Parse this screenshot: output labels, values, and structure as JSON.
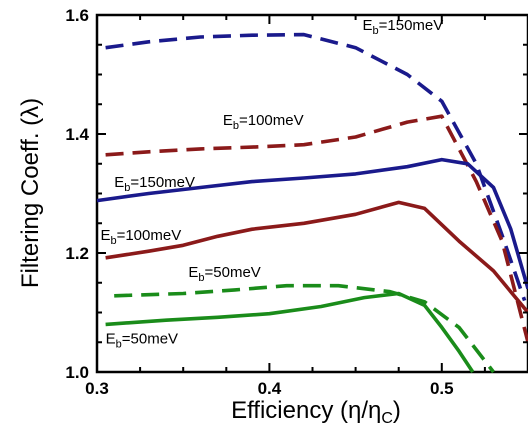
{
  "chart_data": {
    "type": "line",
    "xlabel": "Efficiency (η/η",
    "xlabel_sub": "C",
    "xlabel_end": ")",
    "ylabel": "Filtering Coeff. (λ)",
    "xlim": [
      0.3,
      0.55
    ],
    "ylim": [
      1.0,
      1.6
    ],
    "x_ticks": [
      0.3,
      0.4,
      0.5
    ],
    "y_ticks": [
      1.0,
      1.2,
      1.4,
      1.6
    ],
    "x_tick_labels": [
      "0.3",
      "0.4",
      "0.5"
    ],
    "y_tick_labels": [
      "1.0",
      "1.2",
      "1.4",
      "1.6"
    ],
    "series": [
      {
        "color": "#1a1a8c",
        "dash": true,
        "x": [
          0.305,
          0.33,
          0.36,
          0.39,
          0.42,
          0.45,
          0.48,
          0.5,
          0.52,
          0.535,
          0.548
        ],
        "y": [
          1.545,
          1.555,
          1.563,
          1.566,
          1.567,
          1.545,
          1.5,
          1.455,
          1.35,
          1.23,
          1.12
        ]
      },
      {
        "color": "#8b1a1a",
        "dash": true,
        "x": [
          0.305,
          0.33,
          0.36,
          0.39,
          0.42,
          0.45,
          0.48,
          0.5,
          0.52,
          0.535,
          0.55
        ],
        "y": [
          1.365,
          1.37,
          1.375,
          1.378,
          1.382,
          1.395,
          1.42,
          1.43,
          1.32,
          1.22,
          1.05
        ]
      },
      {
        "color": "#1a1a8c",
        "dash": false,
        "x": [
          0.3,
          0.33,
          0.36,
          0.39,
          0.42,
          0.45,
          0.48,
          0.5,
          0.515,
          0.53,
          0.54,
          0.55
        ],
        "y": [
          1.288,
          1.3,
          1.31,
          1.32,
          1.326,
          1.333,
          1.345,
          1.357,
          1.35,
          1.31,
          1.24,
          1.14
        ]
      },
      {
        "color": "#8b1a1a",
        "dash": false,
        "x": [
          0.305,
          0.33,
          0.35,
          0.37,
          0.39,
          0.42,
          0.45,
          0.475,
          0.49,
          0.51,
          0.53,
          0.55
        ],
        "y": [
          1.192,
          1.203,
          1.213,
          1.228,
          1.24,
          1.25,
          1.265,
          1.285,
          1.275,
          1.22,
          1.17,
          1.1
        ]
      },
      {
        "color": "#1a8c1a",
        "dash": true,
        "x": [
          0.31,
          0.35,
          0.38,
          0.41,
          0.44,
          0.47,
          0.49,
          0.51,
          0.53
        ],
        "y": [
          1.128,
          1.132,
          1.138,
          1.145,
          1.145,
          1.135,
          1.118,
          1.075,
          1.0
        ]
      },
      {
        "color": "#1a8c1a",
        "dash": false,
        "x": [
          0.305,
          0.34,
          0.37,
          0.4,
          0.43,
          0.455,
          0.475,
          0.49,
          0.5,
          0.51,
          0.518
        ],
        "y": [
          1.08,
          1.087,
          1.092,
          1.098,
          1.11,
          1.125,
          1.132,
          1.112,
          1.075,
          1.035,
          1.0
        ]
      }
    ],
    "annotations": [
      {
        "main": "E",
        "sub": "b",
        "rest": "=150meV",
        "x": 0.454,
        "y": 1.575
      },
      {
        "main": "E",
        "sub": "b",
        "rest": "=100meV",
        "x": 0.373,
        "y": 1.415
      },
      {
        "main": "E",
        "sub": "b",
        "rest": "=150meV",
        "x": 0.31,
        "y": 1.311
      },
      {
        "main": "E",
        "sub": "b",
        "rest": "=100meV",
        "x": 0.302,
        "y": 1.222
      },
      {
        "main": "E",
        "sub": "b",
        "rest": "=50meV",
        "x": 0.353,
        "y": 1.16
      },
      {
        "main": "E",
        "sub": "b",
        "rest": "=50meV",
        "x": 0.305,
        "y": 1.048
      }
    ],
    "grid": false
  }
}
